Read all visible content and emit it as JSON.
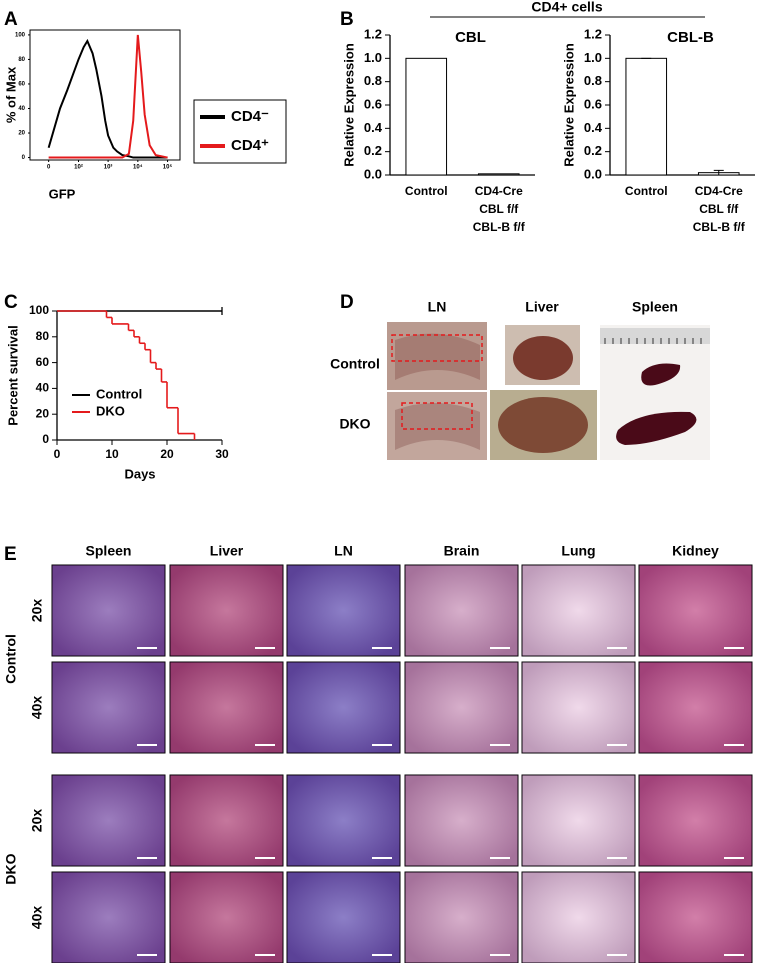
{
  "panel_labels": [
    "A",
    "B",
    "C",
    "D",
    "E"
  ],
  "panel_b_header": "CD4+ cells",
  "chart_data": [
    {
      "type": "line",
      "xscale": "biexponential",
      "ylabel": "% of Max",
      "xlabel": "GFP",
      "x": [
        0,
        20,
        40,
        70,
        100,
        150,
        200,
        300,
        400,
        600,
        800,
        1000,
        1500,
        2000,
        3000,
        5000,
        7000,
        10000,
        13000,
        17000,
        25000,
        40000,
        100000
      ],
      "series": [
        {
          "name": "CD4⁻",
          "color": "#000000",
          "values": [
            8,
            40,
            55,
            70,
            80,
            90,
            95,
            85,
            72,
            50,
            30,
            18,
            8,
            5,
            2,
            1,
            0,
            0,
            0,
            0,
            0,
            0,
            0
          ]
        },
        {
          "name": "CD4⁺",
          "color": "#e41a1c",
          "values": [
            0,
            0,
            0,
            0,
            0,
            0,
            0,
            0,
            0,
            0,
            0,
            0,
            0,
            0,
            0,
            3,
            30,
            100,
            70,
            35,
            10,
            2,
            0
          ]
        }
      ],
      "xlim": [
        -40,
        262144
      ],
      "xticks": [
        0,
        {
          "value": 100,
          "label": "10²"
        },
        {
          "value": 1000,
          "label": "10³"
        },
        {
          "value": 10000,
          "label": "10⁴"
        },
        {
          "value": 100000,
          "label": "10⁵"
        }
      ],
      "ylim": [
        -2,
        104
      ],
      "yticks": [
        0,
        20,
        40,
        60,
        80,
        100
      ],
      "frame": true,
      "legend": "right"
    },
    {
      "type": "bar",
      "title": "CBL",
      "ylabel": "Relative Expression",
      "categories": [
        "Control",
        "CD4-Cre\nCBL f/f\nCBL-B f/f"
      ],
      "values": [
        1.0,
        0.01
      ],
      "color": "#ffffff",
      "ylim": [
        0,
        1.2
      ],
      "yticks": [
        {
          "value": 0,
          "label": "0.0"
        },
        {
          "value": 0.2,
          "label": "0.2"
        },
        {
          "value": 0.4,
          "label": "0.4"
        },
        {
          "value": 0.6,
          "label": "0.6"
        },
        {
          "value": 0.8,
          "label": "0.8"
        },
        {
          "value": 1,
          "label": "1.0"
        },
        {
          "value": 1.2,
          "label": "1.2"
        }
      ]
    },
    {
      "type": "bar",
      "title": "CBL-B",
      "ylabel": "Relative Expression",
      "categories": [
        "Control",
        "CD4-Cre\nCBL f/f\nCBL-B f/f"
      ],
      "values": [
        1.0,
        0.02
      ],
      "errors": [
        0,
        0.02
      ],
      "color": "#ffffff",
      "ylim": [
        0,
        1.2
      ],
      "yticks": [
        {
          "value": 0,
          "label": "0.0"
        },
        {
          "value": 0.2,
          "label": "0.2"
        },
        {
          "value": 0.4,
          "label": "0.4"
        },
        {
          "value": 0.6,
          "label": "0.6"
        },
        {
          "value": 0.8,
          "label": "0.8"
        },
        {
          "value": 1,
          "label": "1.0"
        },
        {
          "value": 1.2,
          "label": "1.2"
        }
      ]
    },
    {
      "type": "step",
      "ylabel": "Percent survival",
      "xlabel": "Days",
      "series": [
        {
          "name": "Control",
          "color": "#000000",
          "x": [
            0,
            30
          ],
          "values": [
            100,
            100
          ]
        },
        {
          "name": "DKO",
          "color": "#e41a1c",
          "x": [
            0,
            9,
            10,
            13,
            14,
            15,
            16,
            17,
            18,
            19,
            20,
            22,
            25
          ],
          "values": [
            100,
            95,
            90,
            85,
            80,
            75,
            70,
            60,
            55,
            45,
            25,
            5,
            0
          ]
        }
      ],
      "xlim": [
        0,
        30
      ],
      "xticks": [
        0,
        10,
        20,
        30
      ],
      "ylim": [
        0,
        100
      ],
      "yticks": [
        0,
        20,
        40,
        60,
        80,
        100
      ],
      "legend": "lower-left"
    }
  ],
  "panel_d": {
    "columns": [
      "LN",
      "Liver",
      "Spleen"
    ],
    "rows": [
      "Control",
      "DKO"
    ]
  },
  "panel_e": {
    "columns": [
      "Spleen",
      "Liver",
      "LN",
      "Brain",
      "Lung",
      "Kidney"
    ],
    "rows": [
      {
        "group": "Control",
        "magnifications": [
          "20x",
          "40x"
        ]
      },
      {
        "group": "DKO",
        "magnifications": [
          "20x",
          "40x"
        ]
      }
    ]
  }
}
